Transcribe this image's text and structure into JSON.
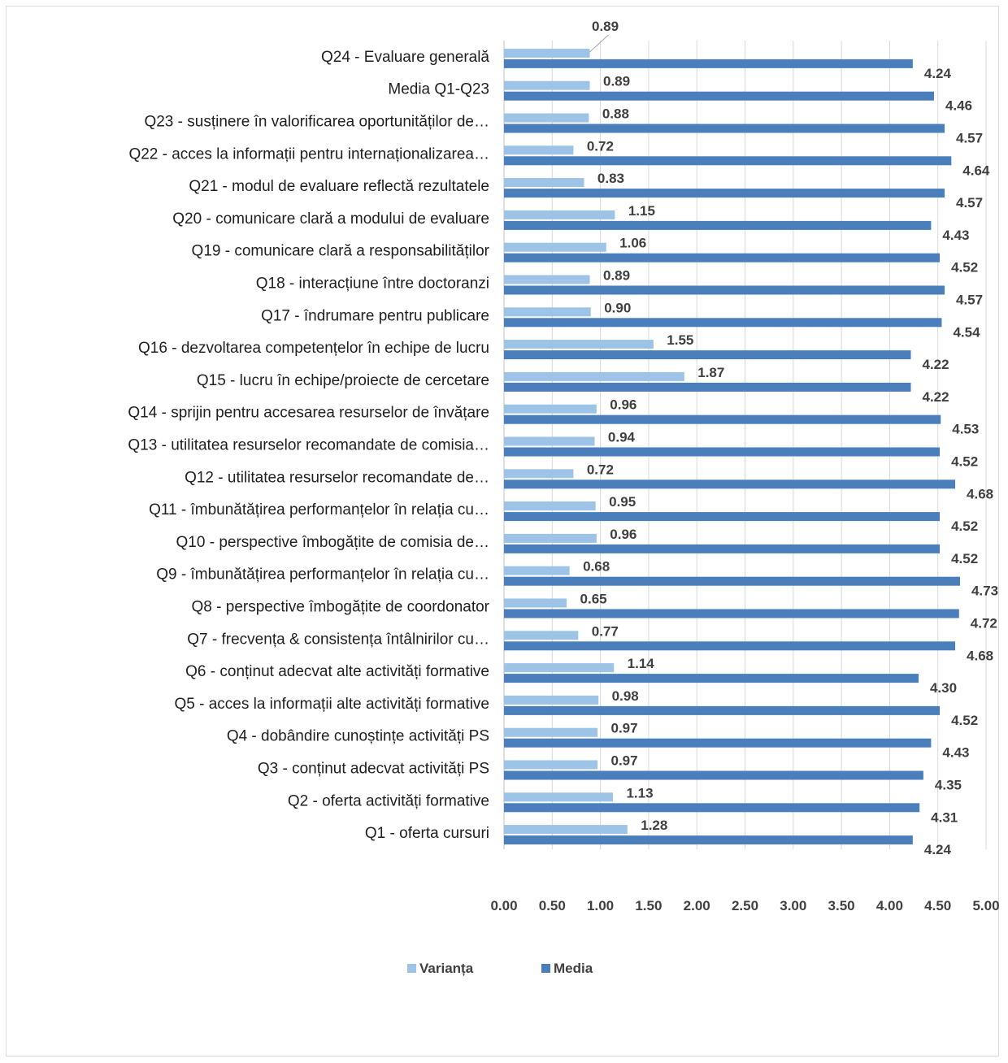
{
  "chart_data": {
    "type": "bar",
    "orientation": "horizontal",
    "categories": [
      "Q24 - Evaluare generală",
      "Media Q1-Q23",
      "Q23 - susținere în valorificarea oportunităților de…",
      "Q22 - acces la informații pentru internaționalizarea…",
      "Q21 - modul de evaluare reflectă rezultatele",
      "Q20 - comunicare clară a modului de evaluare",
      "Q19 - comunicare clară a responsabilităților",
      "Q18 - interacțiune între doctoranzi",
      "Q17 - îndrumare pentru publicare",
      "Q16 - dezvoltarea competențelor în echipe de lucru",
      "Q15 - lucru în echipe/proiecte de cercetare",
      "Q14 - sprijin pentru accesarea resurselor de învățare",
      "Q13 - utilitatea resurselor recomandate de comisia…",
      "Q12 - utilitatea resurselor recomandate de…",
      "Q11 - îmbunătățirea performanțelor în relația cu…",
      "Q10 - perspective îmbogățite de comisia de…",
      "Q9 - îmbunătățirea performanțelor în relația cu…",
      "Q8 - perspective îmbogățite de coordonator",
      "Q7 - frecvența & consistența întâlnirilor cu…",
      "Q6 - conținut adecvat alte activități formative",
      "Q5 - acces la informații alte activități formative",
      "Q4 - dobândire cunoștințe activități PS",
      "Q3 - conținut adecvat activități PS",
      "Q2 - oferta activități formative",
      "Q1 - oferta cursuri"
    ],
    "series": [
      {
        "name": "Varianța",
        "color": "#9dc3e6",
        "values": [
          0.89,
          0.89,
          0.88,
          0.72,
          0.83,
          1.15,
          1.06,
          0.89,
          0.9,
          1.55,
          1.87,
          0.96,
          0.94,
          0.72,
          0.95,
          0.96,
          0.68,
          0.65,
          0.77,
          1.14,
          0.98,
          0.97,
          0.97,
          1.13,
          1.28
        ],
        "labels": [
          "0.89",
          "0.89",
          "0.88",
          "0.72",
          "0.83",
          "1.15",
          "1.06",
          "0.89",
          "0.90",
          "1.55",
          "1.87",
          "0.96",
          "0.94",
          "0.72",
          "0.95",
          "0.96",
          "0.68",
          "0.65",
          "0.77",
          "1.14",
          "0.98",
          "0.97",
          "0.97",
          "1.13",
          "1.28"
        ]
      },
      {
        "name": "Media",
        "color": "#4a7fbb",
        "values": [
          4.24,
          4.46,
          4.57,
          4.64,
          4.57,
          4.43,
          4.52,
          4.57,
          4.54,
          4.22,
          4.22,
          4.53,
          4.52,
          4.68,
          4.52,
          4.52,
          4.73,
          4.72,
          4.68,
          4.3,
          4.52,
          4.43,
          4.35,
          4.31,
          4.24
        ],
        "labels": [
          "4.24",
          "4.46",
          "4.57",
          "4.64",
          "4.57",
          "4.43",
          "4.52",
          "4.57",
          "4.54",
          "4.22",
          "4.22",
          "4.53",
          "4.52",
          "4.68",
          "4.52",
          "4.52",
          "4.73",
          "4.72",
          "4.68",
          "4.30",
          "4.52",
          "4.43",
          "4.35",
          "4.31",
          "4.24"
        ]
      }
    ],
    "xlim": [
      0,
      5
    ],
    "xticks": [
      "0.00",
      "0.50",
      "1.00",
      "1.50",
      "2.00",
      "2.50",
      "3.00",
      "3.50",
      "4.00",
      "4.50",
      "5.00"
    ],
    "grid": true,
    "legend_position": "bottom",
    "title": "",
    "xlabel": "",
    "ylabel": ""
  },
  "colors": {
    "grid": "#d9d9d9",
    "axis": "#bfbfbf",
    "leader": "#a6a6a6"
  }
}
